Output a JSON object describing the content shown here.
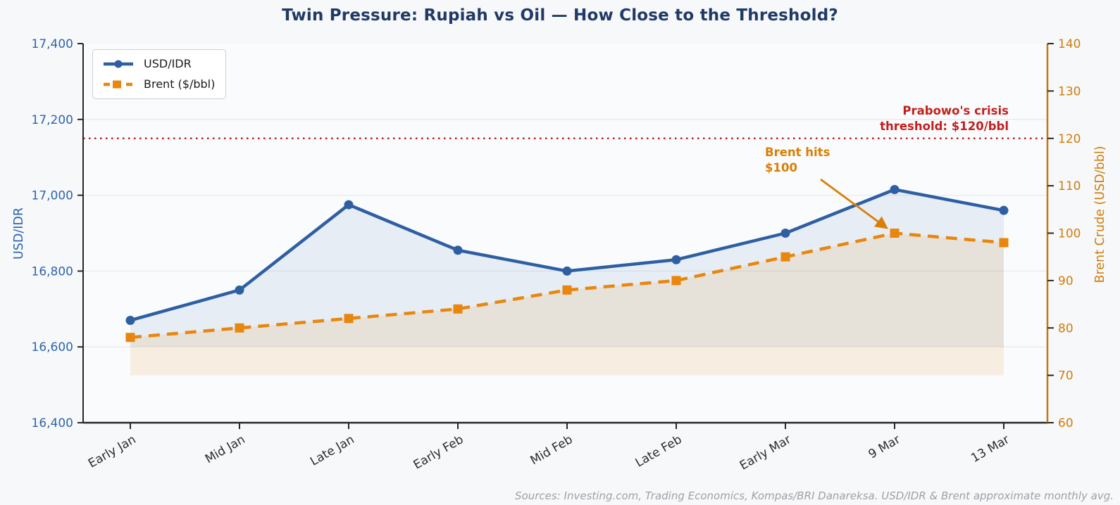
{
  "title": "Twin Pressure: Rupiah vs Oil — How Close to the Threshold?",
  "footer": "Sources: Investing.com, Trading Economics, Kompas/BRI Danareksa. USD/IDR & Brent approximate monthly avg.",
  "colors": {
    "title": "#203a66",
    "footer": "#9ca1a8",
    "spine": "#262626",
    "right_spine": "#c87612",
    "gridline": "#e8eaee",
    "plot_background": "#fafbfc",
    "figure_background": "#f7f8fa",
    "usdidr_blue": "#2e5fa3",
    "brent_orange": "#e8860d",
    "threshold_red": "#c41f1f",
    "x_tick_label": "#2b2b2b"
  },
  "legend": {
    "items": [
      {
        "label": "USD/IDR"
      },
      {
        "label": "Brent ($/bbl)"
      }
    ]
  },
  "annotations": {
    "threshold": {
      "line1": "Prabowo's crisis",
      "line2": "threshold: $120/bbl",
      "color": "#c41f1f"
    },
    "brent_100": {
      "line1": "Brent hits",
      "line2": "$100",
      "color": "#d97f06",
      "points_to": {
        "category": "9 Mar",
        "value": 100
      }
    }
  },
  "chart_data": {
    "type": "line",
    "title": "Twin Pressure: Rupiah vs Oil — How Close to the Threshold?",
    "categories": [
      "Early Jan",
      "Mid Jan",
      "Late Jan",
      "Early Feb",
      "Mid Feb",
      "Late Feb",
      "Early Mar",
      "9 Mar",
      "13 Mar"
    ],
    "series": [
      {
        "name": "USD/IDR",
        "axis": "left",
        "color": "#2e5fa3",
        "fill_color": "rgba(46,95,163,0.09)",
        "line_style": "solid",
        "marker": "circle",
        "values": [
          16670,
          16750,
          16975,
          16855,
          16800,
          16830,
          16900,
          17015,
          16960
        ],
        "fill_to": 16600
      },
      {
        "name": "Brent ($/bbl)",
        "axis": "right",
        "color": "#e8860d",
        "fill_color": "rgba(232,134,13,0.11)",
        "line_style": "dashed",
        "marker": "square",
        "values": [
          78,
          80,
          82,
          84,
          88,
          90,
          95,
          100,
          98
        ],
        "fill_to": 70
      }
    ],
    "left_axis": {
      "label": "USD/IDR",
      "min": 16400,
      "max": 17400,
      "tick_step": 200,
      "tick_labels": [
        "16,400",
        "16,600",
        "16,800",
        "17,000",
        "17,200",
        "17,400"
      ],
      "color": "#2e64ad"
    },
    "right_axis": {
      "label": "Brent Crude (USD/bbl)",
      "min": 60,
      "max": 140,
      "tick_step": 10,
      "tick_labels": [
        "60",
        "70",
        "80",
        "90",
        "100",
        "110",
        "120",
        "130",
        "140"
      ],
      "color": "#d17c08"
    },
    "threshold_line": {
      "axis": "right",
      "value": 120,
      "style": "dotted",
      "color": "#c41f1f",
      "label": "Prabowo's crisis\nthreshold: $120/bbl"
    },
    "grid": true,
    "legend_position": "upper-left"
  }
}
